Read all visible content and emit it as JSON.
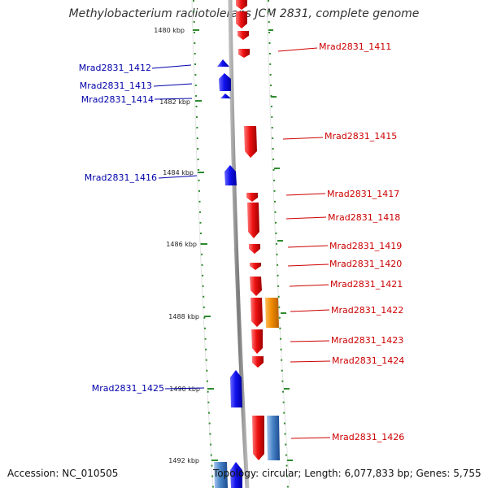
{
  "title": "Methylobacterium radiotolerans JCM 2831, complete genome",
  "footer": {
    "accession": "Accession: NC_010505",
    "topology": "Topology: circular; Length: 6,077,833 bp; Genes: 5,755"
  },
  "colors": {
    "backbone": "#8a8a8a",
    "tick": "#2e8b2e",
    "forward_gene": "#e00000",
    "reverse_gene": "#0000e0",
    "forward_label": "#cc0000",
    "reverse_label": "#0000aa",
    "rna_gene": "#f08c00",
    "light_blue_gene": "#4a86c8"
  },
  "scale_labels": [
    "1480 kbp",
    "1482 kbp",
    "1484 kbp",
    "1486 kbp",
    "1488 kbp",
    "1490 kbp",
    "1492 kbp"
  ],
  "forward_genes": [
    "Mrad2831_1411",
    "Mrad2831_1415",
    "Mrad2831_1417",
    "Mrad2831_1418",
    "Mrad2831_1419",
    "Mrad2831_1420",
    "Mrad2831_1421",
    "Mrad2831_1422",
    "Mrad2831_1423",
    "Mrad2831_1424",
    "Mrad2831_1426"
  ],
  "reverse_genes": [
    "Mrad2831_1412",
    "Mrad2831_1413",
    "Mrad2831_1414",
    "Mrad2831_1416",
    "Mrad2831_1425"
  ]
}
